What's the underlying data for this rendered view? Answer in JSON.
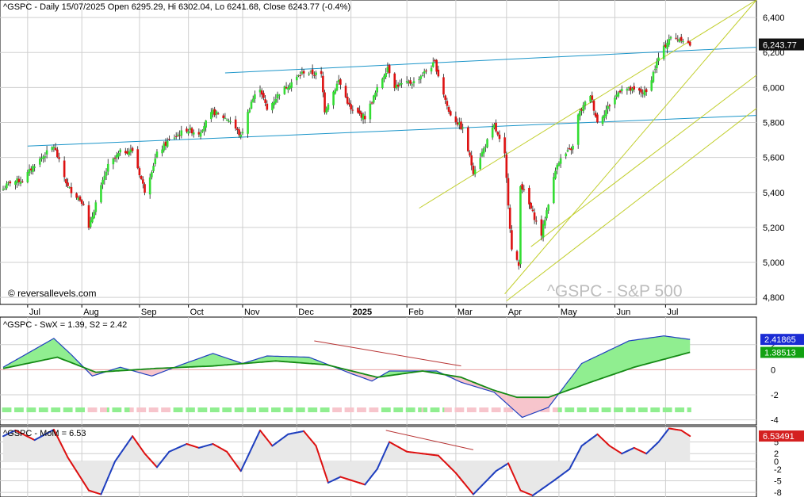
{
  "chart_data": [
    {
      "panel": "price",
      "type": "candlestick",
      "header": "^GSPC - Daily 15/07/2025 Open 6295.29, Hi 6302.04, Lo 6241.68, Close 6243.77 (-0.4%)",
      "watermark": "^GSPC - S&P 500",
      "credit": "© reversallevels.com",
      "ylim": [
        4760,
        6500
      ],
      "yticks": [
        4800,
        5000,
        5200,
        5400,
        5600,
        5800,
        6000,
        6200,
        6400
      ],
      "ytick_labels": [
        "4,800",
        "5,000",
        "5,200",
        "5,400",
        "5,600",
        "5,800",
        "6,000",
        "6,200",
        "6,400"
      ],
      "last_value_label": "6,243.77",
      "last_value": 6243.77,
      "xticks": [
        {
          "label": "Jul",
          "date": "2024-07-01"
        },
        {
          "label": "Aug",
          "date": "2024-08-01"
        },
        {
          "label": "Sep",
          "date": "2024-09-03"
        },
        {
          "label": "Oct",
          "date": "2024-10-01"
        },
        {
          "label": "Nov",
          "date": "2024-11-01"
        },
        {
          "label": "Dec",
          "date": "2024-12-02"
        },
        {
          "label": "2025",
          "date": "2025-01-02",
          "bold": true
        },
        {
          "label": "Feb",
          "date": "2025-02-03"
        },
        {
          "label": "Mar",
          "date": "2025-03-03"
        },
        {
          "label": "Apr",
          "date": "2025-04-01"
        },
        {
          "label": "May",
          "date": "2025-05-01"
        },
        {
          "label": "Jun",
          "date": "2025-06-02"
        },
        {
          "label": "Jul",
          "date": "2025-07-01"
        }
      ],
      "close_anchors": [
        [
          "2024-06-17",
          5420
        ],
        [
          "2024-06-21",
          5460
        ],
        [
          "2024-06-28",
          5470
        ],
        [
          "2024-07-05",
          5560
        ],
        [
          "2024-07-16",
          5665
        ],
        [
          "2024-07-24",
          5430
        ],
        [
          "2024-08-02",
          5340
        ],
        [
          "2024-08-05",
          5190
        ],
        [
          "2024-08-09",
          5340
        ],
        [
          "2024-08-16",
          5550
        ],
        [
          "2024-08-23",
          5630
        ],
        [
          "2024-08-30",
          5640
        ],
        [
          "2024-09-06",
          5410
        ],
        [
          "2024-09-13",
          5620
        ],
        [
          "2024-09-20",
          5700
        ],
        [
          "2024-09-30",
          5760
        ],
        [
          "2024-10-07",
          5740
        ],
        [
          "2024-10-15",
          5860
        ],
        [
          "2024-10-25",
          5810
        ],
        [
          "2024-10-31",
          5720
        ],
        [
          "2024-11-06",
          5920
        ],
        [
          "2024-11-11",
          6000
        ],
        [
          "2024-11-15",
          5870
        ],
        [
          "2024-11-22",
          5970
        ],
        [
          "2024-11-29",
          6030
        ],
        [
          "2024-12-06",
          6090
        ],
        [
          "2024-12-16",
          6070
        ],
        [
          "2024-12-18",
          5870
        ],
        [
          "2024-12-26",
          6040
        ],
        [
          "2025-01-02",
          5870
        ],
        [
          "2025-01-10",
          5830
        ],
        [
          "2025-01-17",
          5990
        ],
        [
          "2025-01-23",
          6120
        ],
        [
          "2025-01-27",
          6010
        ],
        [
          "2025-02-07",
          6030
        ],
        [
          "2025-02-19",
          6140
        ],
        [
          "2025-02-27",
          5860
        ],
        [
          "2025-03-07",
          5760
        ],
        [
          "2025-03-13",
          5520
        ],
        [
          "2025-03-25",
          5780
        ],
        [
          "2025-03-31",
          5610
        ],
        [
          "2025-04-04",
          5070
        ],
        [
          "2025-04-08",
          4980
        ],
        [
          "2025-04-09",
          5450
        ],
        [
          "2025-04-21",
          5160
        ],
        [
          "2025-04-30",
          5570
        ],
        [
          "2025-05-09",
          5660
        ],
        [
          "2025-05-12",
          5840
        ],
        [
          "2025-05-19",
          5960
        ],
        [
          "2025-05-23",
          5800
        ],
        [
          "2025-06-06",
          6000
        ],
        [
          "2025-06-13",
          5980
        ],
        [
          "2025-06-20",
          5970
        ],
        [
          "2025-06-27",
          6170
        ],
        [
          "2025-07-03",
          6280
        ],
        [
          "2025-07-10",
          6280
        ],
        [
          "2025-07-15",
          6244
        ]
      ],
      "trendlines": [
        {
          "color": "#1b95c9",
          "from": [
            "2024-07-01",
            5665
          ],
          "to": [
            "2025-08-22",
            5840
          ]
        },
        {
          "color": "#1b95c9",
          "from": [
            "2024-10-22",
            6083
          ],
          "to": [
            "2025-08-22",
            6230
          ]
        },
        {
          "color": "#c2cf2e",
          "from": [
            "2025-02-10",
            5310
          ],
          "to": [
            "2025-08-22",
            6500
          ]
        },
        {
          "color": "#c2cf2e",
          "from": [
            "2025-03-31",
            4820
          ],
          "to": [
            "2025-08-22",
            6500
          ]
        },
        {
          "color": "#c2cf2e",
          "from": [
            "2025-04-15",
            5090
          ],
          "to": [
            "2025-08-22",
            6070
          ]
        },
        {
          "color": "#c2cf2e",
          "from": [
            "2025-04-01",
            4780
          ],
          "to": [
            "2025-08-22",
            5880
          ]
        }
      ]
    },
    {
      "panel": "swing",
      "type": "area",
      "header": "^GSPC - SwX = 1.39, S2 = 2.42",
      "ylim": [
        -4.4,
        4.2
      ],
      "yticks": [
        -4,
        -2,
        0,
        2
      ],
      "ytick_labels": [
        "-4",
        "-2",
        "0",
        "2"
      ],
      "badges": [
        {
          "label": "2.41865",
          "value": 2.41865,
          "color": "#1a2bd4"
        },
        {
          "label": "1.38513",
          "value": 1.38513,
          "color": "#11a111"
        }
      ],
      "s2_anchors": [
        [
          "2024-06-17",
          0.2
        ],
        [
          "2024-07-16",
          2.5
        ],
        [
          "2024-07-26",
          1.2
        ],
        [
          "2024-08-07",
          -0.5
        ],
        [
          "2024-08-23",
          0.2
        ],
        [
          "2024-09-10",
          -0.5
        ],
        [
          "2024-09-27",
          0.4
        ],
        [
          "2024-10-15",
          1.3
        ],
        [
          "2024-11-01",
          0.5
        ],
        [
          "2024-11-15",
          1.1
        ],
        [
          "2024-12-09",
          1.0
        ],
        [
          "2025-01-02",
          -0.3
        ],
        [
          "2025-01-14",
          -0.9
        ],
        [
          "2025-01-24",
          -0.1
        ],
        [
          "2025-02-20",
          -0.1
        ],
        [
          "2025-03-06",
          -1.0
        ],
        [
          "2025-03-25",
          -1.8
        ],
        [
          "2025-04-10",
          -3.8
        ],
        [
          "2025-04-25",
          -3.0
        ],
        [
          "2025-05-14",
          0.5
        ],
        [
          "2025-06-10",
          2.3
        ],
        [
          "2025-06-30",
          2.7
        ],
        [
          "2025-07-15",
          2.42
        ]
      ],
      "swx_anchors": [
        [
          "2024-06-17",
          0.1
        ],
        [
          "2024-07-18",
          1.0
        ],
        [
          "2024-08-09",
          -0.2
        ],
        [
          "2024-09-12",
          0.1
        ],
        [
          "2024-10-15",
          0.3
        ],
        [
          "2024-11-20",
          0.7
        ],
        [
          "2024-12-19",
          0.4
        ],
        [
          "2025-01-17",
          -0.6
        ],
        [
          "2025-02-12",
          -0.1
        ],
        [
          "2025-03-06",
          -0.6
        ],
        [
          "2025-03-24",
          -1.6
        ],
        [
          "2025-04-07",
          -2.2
        ],
        [
          "2025-04-25",
          -2.2
        ],
        [
          "2025-05-19",
          -1.0
        ],
        [
          "2025-06-13",
          0.2
        ],
        [
          "2025-07-15",
          1.39
        ]
      ],
      "divergence_line": {
        "color": "#b83333",
        "from": [
          "2024-12-12",
          2.3
        ],
        "to": [
          "2025-03-06",
          0.3
        ]
      }
    },
    {
      "panel": "momentum",
      "type": "line",
      "header": "^GSPC - MoM = 6.53",
      "ylim": [
        -9.2,
        9
      ],
      "yticks": [
        -8,
        -5,
        -2,
        0,
        2,
        5
      ],
      "ytick_labels": [
        "-8",
        "-5",
        "-2",
        "0",
        "2",
        "5"
      ],
      "badge": {
        "label": "6.53491",
        "value": 6.53491,
        "color": "#d42020"
      },
      "mom_anchors": [
        [
          "2024-06-17",
          6.5
        ],
        [
          "2024-06-24",
          8.0
        ],
        [
          "2024-07-05",
          5.5
        ],
        [
          "2024-07-16",
          8.2
        ],
        [
          "2024-07-24",
          1.0
        ],
        [
          "2024-08-05",
          -7.5
        ],
        [
          "2024-08-12",
          -8.5
        ],
        [
          "2024-08-20",
          0.0
        ],
        [
          "2024-08-30",
          6.5
        ],
        [
          "2024-09-06",
          2.0
        ],
        [
          "2024-09-13",
          -1.5
        ],
        [
          "2024-09-20",
          2.5
        ],
        [
          "2024-09-30",
          4.5
        ],
        [
          "2024-10-07",
          3.5
        ],
        [
          "2024-10-15",
          4.5
        ],
        [
          "2024-10-23",
          2.5
        ],
        [
          "2024-10-31",
          -2.5
        ],
        [
          "2024-11-11",
          8.0
        ],
        [
          "2024-11-18",
          4.0
        ],
        [
          "2024-11-27",
          7.0
        ],
        [
          "2024-12-06",
          7.8
        ],
        [
          "2024-12-13",
          4.0
        ],
        [
          "2024-12-20",
          -5.5
        ],
        [
          "2024-12-27",
          -4.0
        ],
        [
          "2025-01-10",
          -6.0
        ],
        [
          "2025-01-17",
          -2.0
        ],
        [
          "2025-01-24",
          5.0
        ],
        [
          "2025-02-03",
          2.5
        ],
        [
          "2025-02-12",
          2.0
        ],
        [
          "2025-02-21",
          1.5
        ],
        [
          "2025-03-03",
          -3.0
        ],
        [
          "2025-03-13",
          -8.5
        ],
        [
          "2025-03-26",
          -2.5
        ],
        [
          "2025-04-02",
          -0.5
        ],
        [
          "2025-04-09",
          -7.5
        ],
        [
          "2025-04-16",
          -8.8
        ],
        [
          "2025-04-28",
          -5.0
        ],
        [
          "2025-05-07",
          -2.0
        ],
        [
          "2025-05-14",
          4.0
        ],
        [
          "2025-05-23",
          7.0
        ],
        [
          "2025-05-30",
          4.0
        ],
        [
          "2025-06-06",
          2.0
        ],
        [
          "2025-06-13",
          3.5
        ],
        [
          "2025-06-20",
          2.0
        ],
        [
          "2025-06-27",
          5.0
        ],
        [
          "2025-07-03",
          8.5
        ],
        [
          "2025-07-10",
          8.0
        ],
        [
          "2025-07-15",
          6.53
        ]
      ],
      "divergence_line": {
        "color": "#b83333",
        "from": [
          "2025-01-22",
          8.0
        ],
        "to": [
          "2025-03-13",
          3.0
        ]
      }
    }
  ],
  "colors": {
    "up": "#33dd33",
    "down": "#dd1111",
    "grid": "#cfcfcf",
    "axis_bg": "#ffffff",
    "s2_line": "#1f3fbf",
    "swx_line": "#148a14",
    "mom_up": "#1f3fbf",
    "mom_down": "#dd1111",
    "band_green": "#90ee90",
    "band_pink": "#f7c5cc",
    "band_yellow": "#f5f500",
    "mom_fill": "#e8e8e8"
  }
}
